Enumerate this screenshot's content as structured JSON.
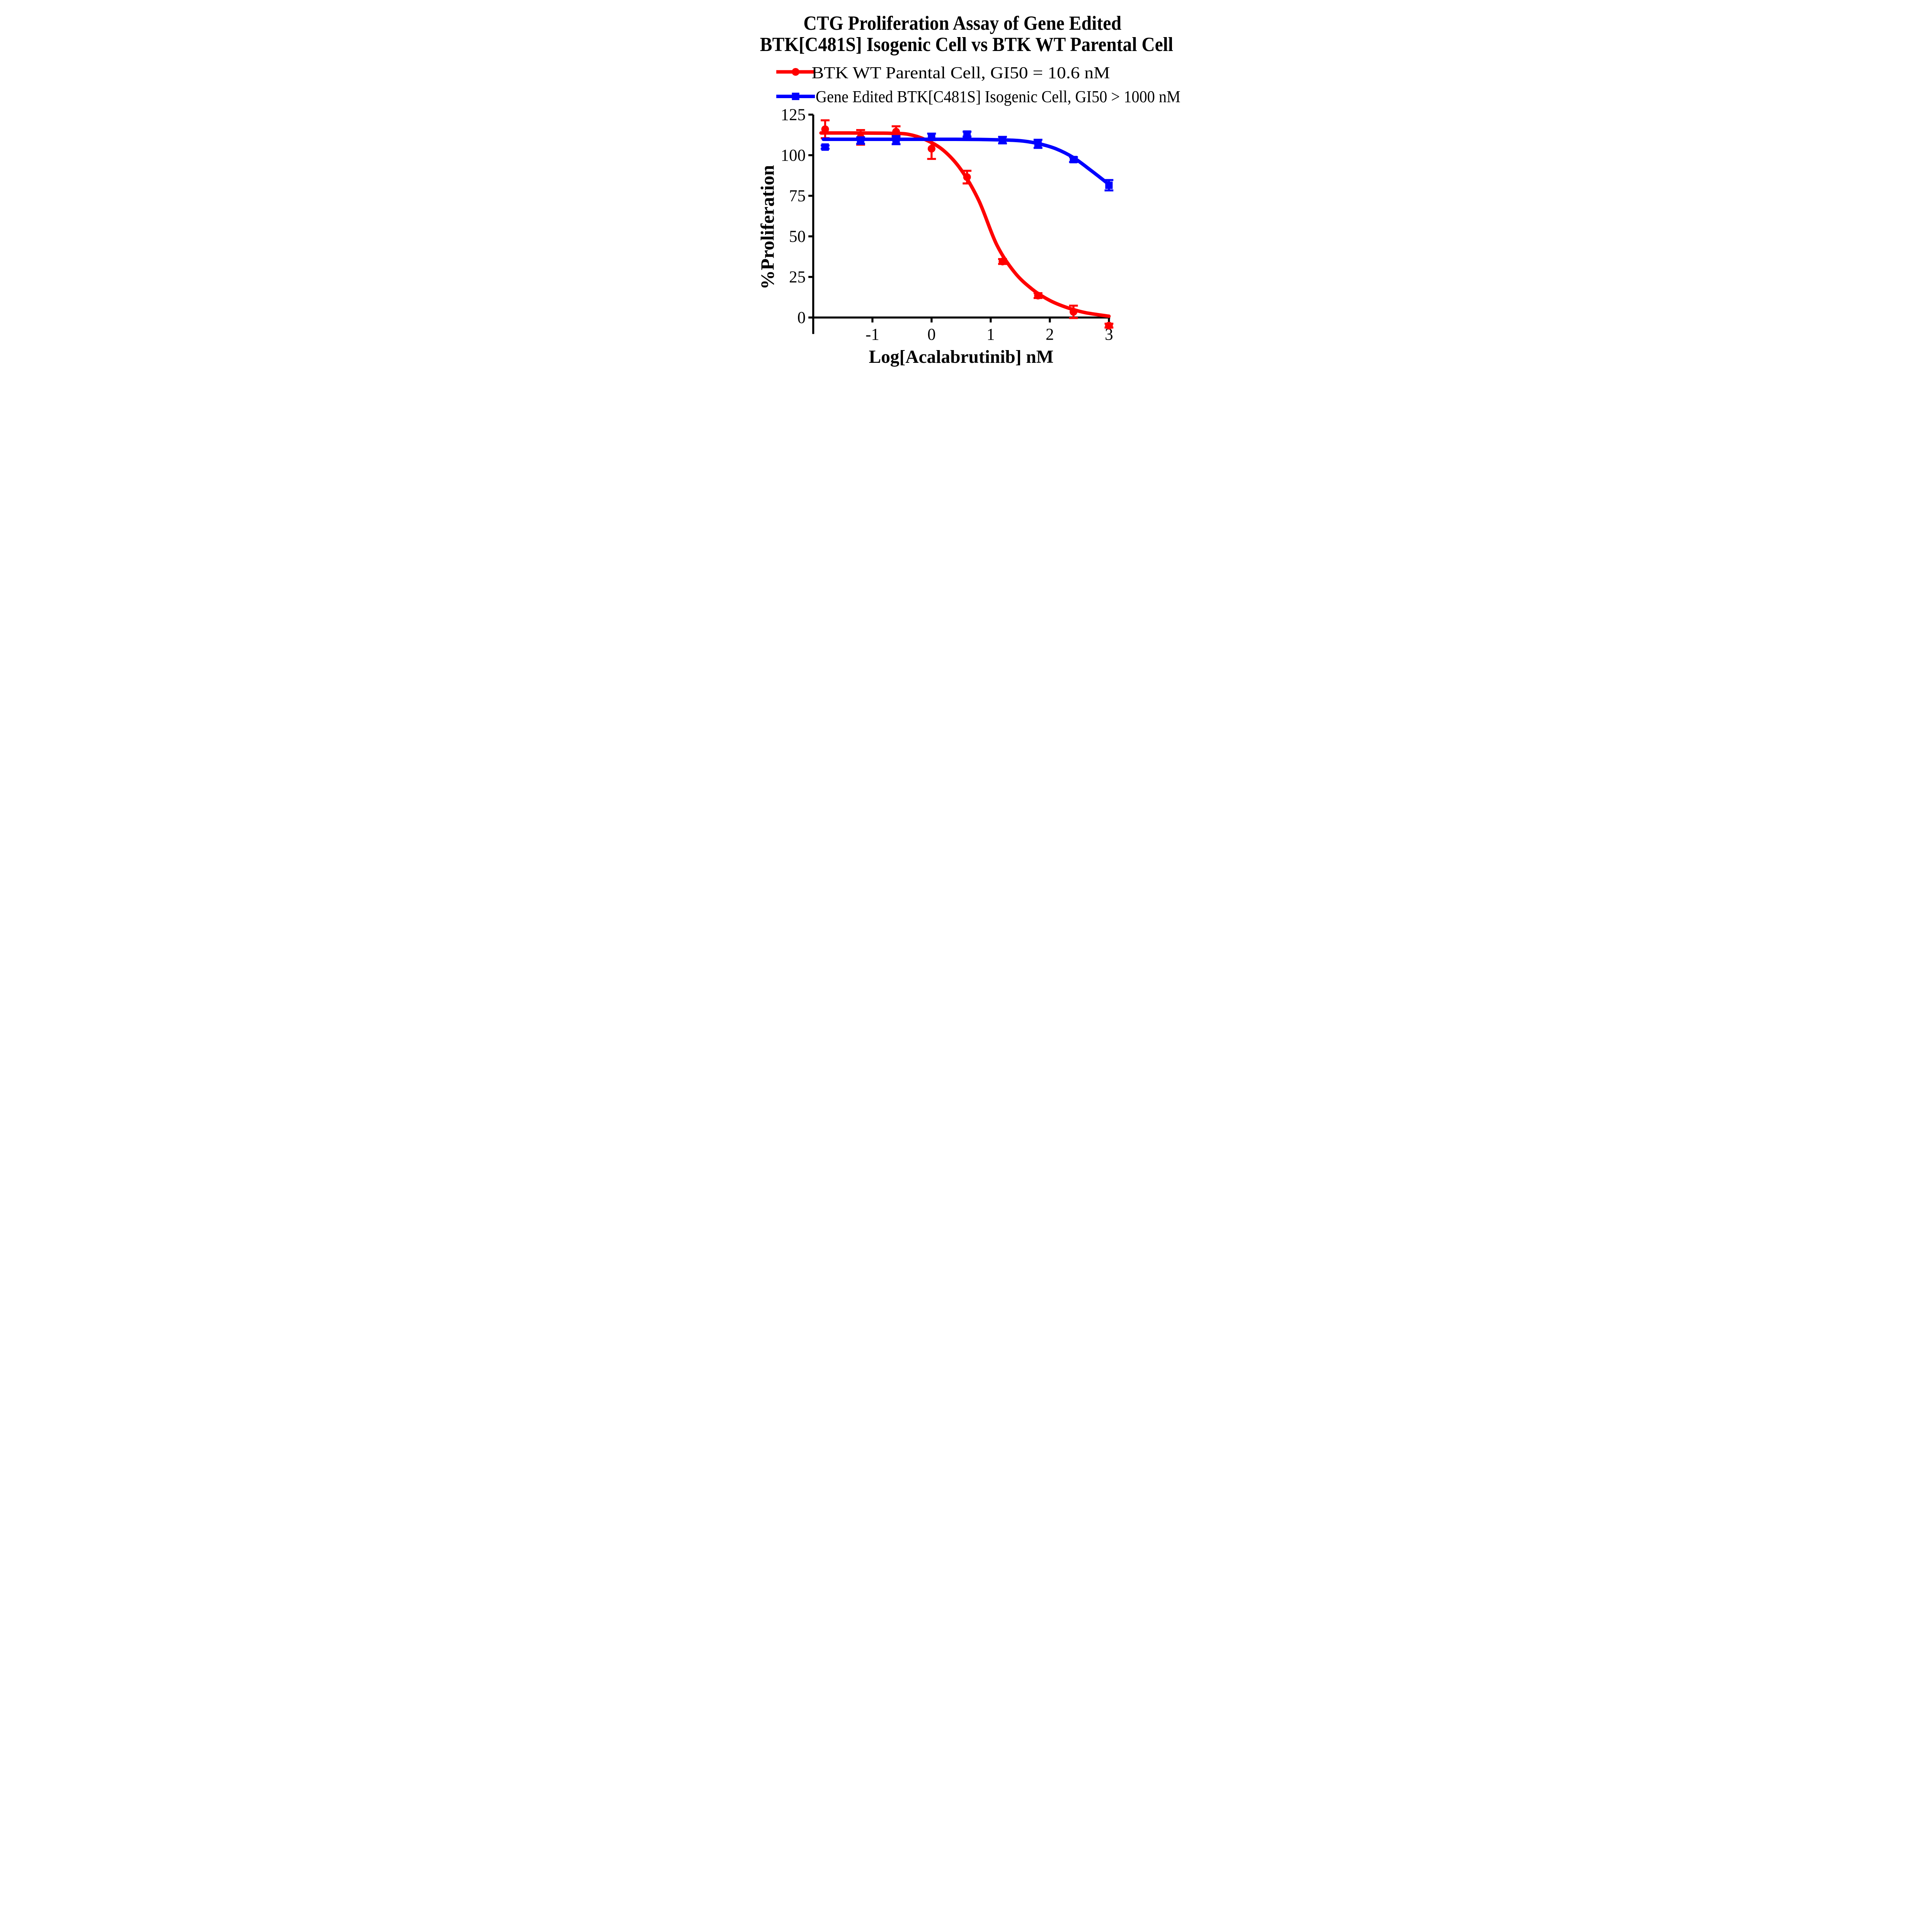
{
  "title": {
    "line1": "CTG Proliferation Assay of Gene Edited",
    "line2": "BTK[C481S] Isogenic Cell vs BTK WT Parental Cell"
  },
  "legend": [
    {
      "label": "BTK WT Parental Cell, GI50  = 10.6 nM",
      "marker": "circle",
      "color": "#ff0000"
    },
    {
      "label": "Gene Edited BTK[C481S] Isogenic Cell, GI50 > 1000 nM",
      "marker": "square",
      "color": "#0000ff"
    }
  ],
  "chart_data": {
    "type": "line",
    "title": "CTG Proliferation Assay of Gene Edited BTK[C481S] Isogenic Cell vs BTK WT Parental Cell",
    "xlabel": "Log[Acalabrutinib] nM",
    "ylabel": "%Proliferation",
    "x_ticks": [
      -1,
      0,
      1,
      2,
      3
    ],
    "y_ticks": [
      0,
      25,
      50,
      75,
      100,
      125
    ],
    "xlim": [
      -2,
      3.02
    ],
    "ylim": [
      -10,
      125
    ],
    "grid": false,
    "legend_position": "top-left",
    "series": [
      {
        "name": "BTK WT Parental Cell",
        "gi50": "10.6 nM",
        "color": "#ff0000",
        "marker": "circle",
        "x": [
          -1.8,
          -1.2,
          -0.6,
          0,
          0.6,
          1.2,
          1.8,
          2.4,
          3
        ],
        "y": [
          116,
          111,
          114.5,
          104,
          86.5,
          34.5,
          13.5,
          3.5,
          -5
        ],
        "err": [
          5.5,
          4.5,
          3.3,
          6.3,
          3.9,
          1.5,
          1.5,
          3.8,
          1.2
        ],
        "curve": [
          [
            -1.87,
            113.7
          ],
          [
            -1.4,
            113.7
          ],
          [
            -1.0,
            113.6
          ],
          [
            -0.7,
            113.5
          ],
          [
            -0.4,
            112.9
          ],
          [
            -0.1,
            109.5
          ],
          [
            0.2,
            103
          ],
          [
            0.5,
            91
          ],
          [
            0.8,
            72
          ],
          [
            1.1,
            45
          ],
          [
            1.4,
            28
          ],
          [
            1.7,
            17.5
          ],
          [
            2.0,
            10.5
          ],
          [
            2.3,
            6
          ],
          [
            2.6,
            3
          ],
          [
            3.0,
            0.8
          ]
        ]
      },
      {
        "name": "Gene Edited BTK[C481S] Isogenic Cell",
        "gi50": "> 1000 nM",
        "color": "#0000ff",
        "marker": "square",
        "x": [
          -1.8,
          -1.2,
          -0.6,
          0,
          0.6,
          1.2,
          1.8,
          2.4,
          3
        ],
        "y": [
          105,
          109,
          109.3,
          111.3,
          113,
          109.3,
          107,
          97.3,
          81.5
        ],
        "err": [
          1,
          2,
          2.5,
          2,
          1.5,
          2,
          2.5,
          1.5,
          3.2
        ],
        "curve": [
          [
            -1.83,
            109.8
          ],
          [
            -1.2,
            109.8
          ],
          [
            -0.6,
            109.8
          ],
          [
            0,
            109.8
          ],
          [
            0.4,
            109.8
          ],
          [
            0.8,
            109.7
          ],
          [
            1.2,
            109.4
          ],
          [
            1.5,
            108.9
          ],
          [
            1.8,
            107.2
          ],
          [
            2.1,
            104
          ],
          [
            2.4,
            98.5
          ],
          [
            2.7,
            90.5
          ],
          [
            3.0,
            82
          ]
        ]
      }
    ]
  }
}
